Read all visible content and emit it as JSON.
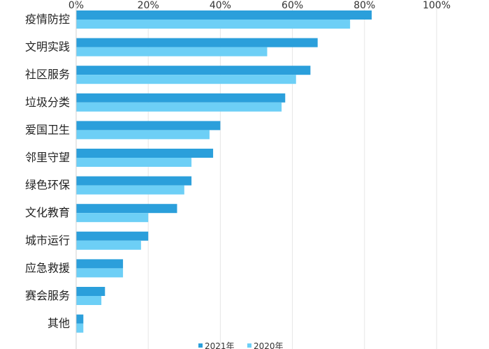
{
  "chart_data": {
    "type": "bar",
    "orientation": "horizontal",
    "categories": [
      "疫情防控",
      "文明实践",
      "社区服务",
      "垃圾分类",
      "爱国卫生",
      "邻里守望",
      "绿色环保",
      "文化教育",
      "城市运行",
      "应急救援",
      "赛会服务",
      "其他"
    ],
    "series": [
      {
        "name": "2021年",
        "color": "#2b9fdb",
        "values": [
          82,
          67,
          65,
          58,
          40,
          38,
          32,
          28,
          20,
          13,
          8,
          2
        ]
      },
      {
        "name": "2020年",
        "color": "#6dcff6",
        "values": [
          76,
          53,
          61,
          57,
          37,
          32,
          30,
          20,
          18,
          13,
          7,
          2
        ]
      }
    ],
    "xlim": [
      0,
      100
    ],
    "xticks": [
      "0%",
      "20%",
      "40%",
      "60%",
      "80%",
      "100%"
    ],
    "grid": true,
    "legend_position": "bottom"
  }
}
